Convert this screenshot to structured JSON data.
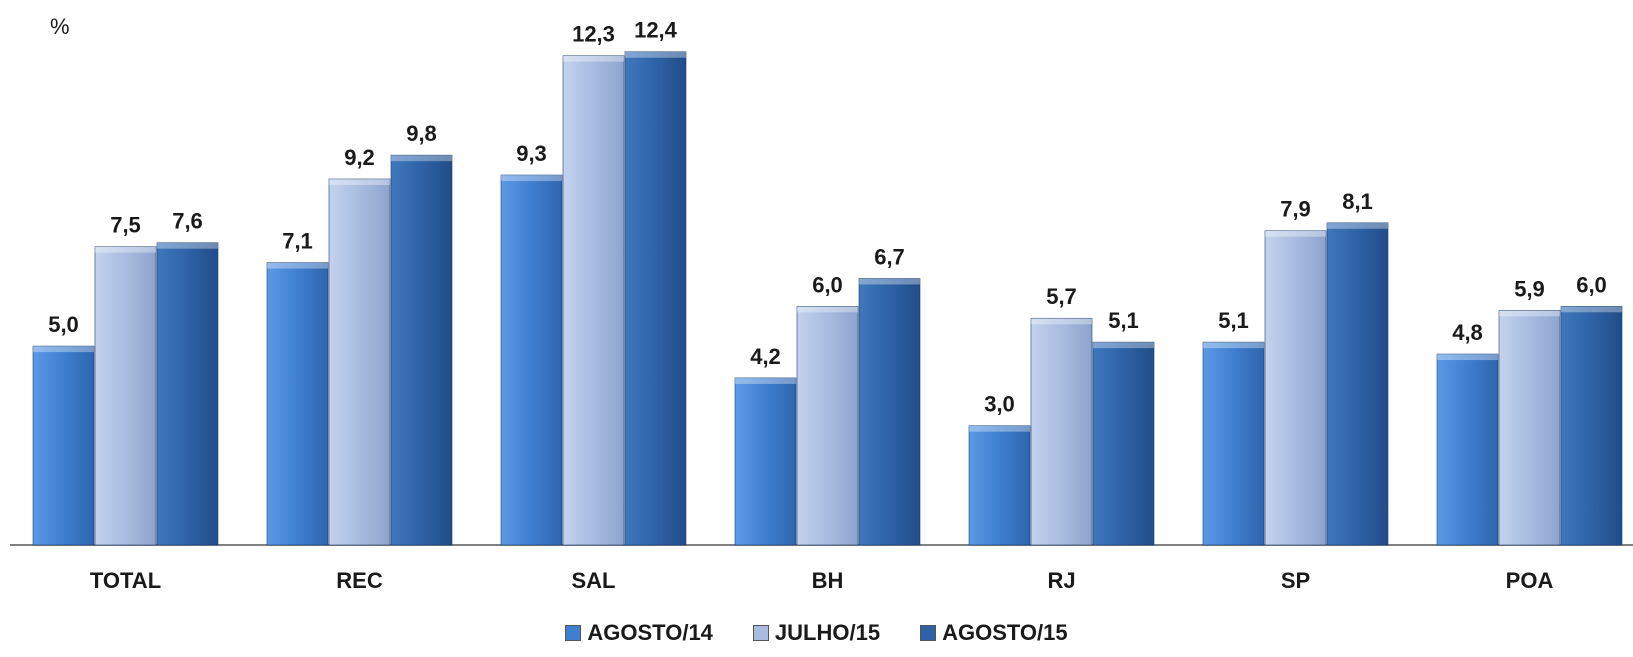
{
  "unit_label": "%",
  "chart_data": {
    "type": "bar",
    "title": "",
    "xlabel": "",
    "ylabel": "%",
    "ylim": [
      0,
      13.7
    ],
    "grid": false,
    "legend_position": "bottom",
    "categories": [
      "TOTAL",
      "REC",
      "SAL",
      "BH",
      "RJ",
      "SP",
      "POA"
    ],
    "series": [
      {
        "name": "AGOSTO/14",
        "color": "#3f7fd0",
        "labels": [
          "5,0",
          "7,1",
          "9,3",
          "4,2",
          "3,0",
          "5,1",
          "4,8"
        ],
        "values": [
          5.0,
          7.1,
          9.3,
          4.2,
          3.0,
          5.1,
          4.8
        ]
      },
      {
        "name": "JULHO/15",
        "color": "#a8bce0",
        "labels": [
          "7,5",
          "9,2",
          "12,3",
          "6,0",
          "5,7",
          "7,9",
          "5,9"
        ],
        "values": [
          7.5,
          9.2,
          12.3,
          6.0,
          5.7,
          7.9,
          5.9
        ]
      },
      {
        "name": "AGOSTO/15",
        "color": "#2e62a6",
        "labels": [
          "7,6",
          "9,8",
          "12,4",
          "6,7",
          "5,1",
          "8,1",
          "6,0"
        ],
        "values": [
          7.6,
          9.8,
          12.4,
          6.7,
          5.1,
          8.1,
          6.0
        ]
      }
    ]
  }
}
